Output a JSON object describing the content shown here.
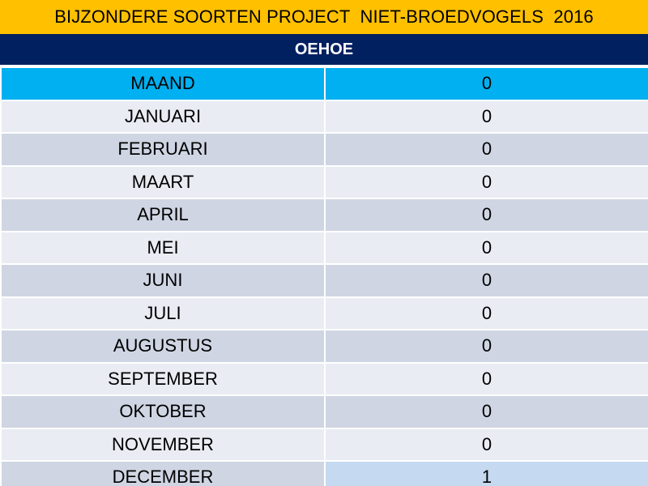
{
  "title": "BIJZONDERE SOORTEN PROJECT  NIET-BROEDVOGELS  2016",
  "species": "OEHOE",
  "table": {
    "header": {
      "label": "MAAND",
      "value": "0"
    },
    "rows": [
      {
        "month": "JANUARI",
        "count": "0"
      },
      {
        "month": "FEBRUARI",
        "count": "0"
      },
      {
        "month": "MAART",
        "count": "0"
      },
      {
        "month": "APRIL",
        "count": "0"
      },
      {
        "month": "MEI",
        "count": "0"
      },
      {
        "month": "JUNI",
        "count": "0"
      },
      {
        "month": "JULI",
        "count": "0"
      },
      {
        "month": "AUGUSTUS",
        "count": "0"
      },
      {
        "month": "SEPTEMBER",
        "count": "0"
      },
      {
        "month": "OKTOBER",
        "count": "0"
      },
      {
        "month": "NOVEMBER",
        "count": "0"
      },
      {
        "month": "DECEMBER",
        "count": "1"
      }
    ]
  },
  "colors": {
    "title_background": "#ffc000",
    "species_background": "#002060",
    "header_row_background": "#00b0f0",
    "row_light": "#e9ecf3",
    "row_dark": "#cfd5e3",
    "highlight_cell": "#c5d9f1"
  }
}
